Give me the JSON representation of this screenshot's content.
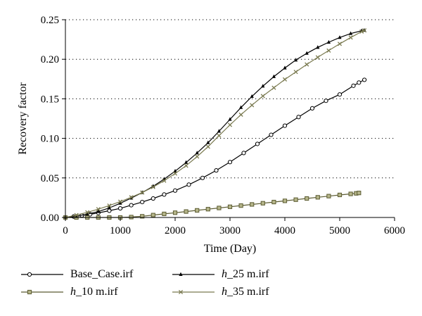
{
  "chart_data": {
    "type": "line",
    "title": "",
    "xlabel": "Time (Day)",
    "ylabel": "Recovery factor",
    "xlim": [
      0,
      6000
    ],
    "ylim": [
      0,
      0.25
    ],
    "xticks": [
      "0",
      "1000",
      "2000",
      "3000",
      "4000",
      "5000",
      "6000"
    ],
    "yticks": [
      "0.00",
      "0.05",
      "0.10",
      "0.15",
      "0.20",
      "0.25"
    ],
    "grid": "horizontal dotted",
    "legend_position": "bottom",
    "series": [
      {
        "name": "Base_Case.irf",
        "name_parts": [
          "",
          "Base_Case.irf"
        ],
        "marker": "circle",
        "color": "#000000",
        "x": [
          0,
          150,
          300,
          450,
          600,
          800,
          1000,
          1200,
          1400,
          1600,
          1800,
          2000,
          2250,
          2500,
          2750,
          3000,
          3250,
          3500,
          3750,
          4000,
          4250,
          4500,
          4750,
          5000,
          5250,
          5350,
          5450
        ],
        "y": [
          0,
          0.0012,
          0.0025,
          0.004,
          0.0058,
          0.0085,
          0.0115,
          0.0155,
          0.0195,
          0.024,
          0.029,
          0.034,
          0.0415,
          0.05,
          0.0595,
          0.07,
          0.0815,
          0.093,
          0.1045,
          0.116,
          0.127,
          0.138,
          0.1475,
          0.1555,
          0.1665,
          0.1705,
          0.174
        ]
      },
      {
        "name": "h_10 m.irf",
        "name_parts": [
          "h",
          "_10 m.irf"
        ],
        "marker": "square",
        "color": "#5a5a30",
        "x": [
          0,
          200,
          400,
          600,
          800,
          1000,
          1200,
          1400,
          1600,
          1800,
          2000,
          2200,
          2400,
          2600,
          2800,
          3000,
          3200,
          3400,
          3600,
          3800,
          4000,
          4200,
          4400,
          4600,
          4800,
          5000,
          5200,
          5300,
          5350
        ],
        "y": [
          0,
          0,
          0,
          0,
          0,
          0,
          0.0005,
          0.0015,
          0.003,
          0.0045,
          0.006,
          0.0075,
          0.009,
          0.0105,
          0.012,
          0.0135,
          0.015,
          0.0165,
          0.018,
          0.0195,
          0.021,
          0.0225,
          0.024,
          0.0255,
          0.027,
          0.0285,
          0.0298,
          0.0305,
          0.031
        ]
      },
      {
        "name": "h_25 m.irf",
        "name_parts": [
          "h",
          "_25 m.irf"
        ],
        "marker": "triangle",
        "color": "#000000",
        "x": [
          0,
          200,
          400,
          600,
          800,
          1000,
          1200,
          1400,
          1600,
          1800,
          2000,
          2200,
          2400,
          2600,
          2800,
          3000,
          3200,
          3400,
          3600,
          3800,
          4000,
          4200,
          4400,
          4600,
          4800,
          5000,
          5200,
          5400,
          5450
        ],
        "y": [
          0,
          0.0015,
          0.0042,
          0.0075,
          0.012,
          0.018,
          0.0245,
          0.0315,
          0.0395,
          0.0485,
          0.0585,
          0.0695,
          0.0815,
          0.0945,
          0.109,
          0.124,
          0.139,
          0.153,
          0.166,
          0.178,
          0.189,
          0.199,
          0.2075,
          0.215,
          0.2215,
          0.2275,
          0.2325,
          0.236,
          0.2365
        ]
      },
      {
        "name": "h_35 m.irf",
        "name_parts": [
          "h",
          "_35 m.irf"
        ],
        "marker": "cross",
        "color": "#7a7a50",
        "x": [
          0,
          200,
          400,
          600,
          800,
          1000,
          1200,
          1400,
          1600,
          1800,
          2000,
          2200,
          2400,
          2600,
          2800,
          3000,
          3200,
          3400,
          3600,
          3800,
          4000,
          4200,
          4400,
          4600,
          4800,
          5000,
          5200,
          5400,
          5450
        ],
        "y": [
          0,
          0.003,
          0.0065,
          0.0105,
          0.015,
          0.02,
          0.0255,
          0.0315,
          0.0385,
          0.0465,
          0.0555,
          0.0655,
          0.077,
          0.0895,
          0.1035,
          0.117,
          0.13,
          0.142,
          0.1535,
          0.164,
          0.1745,
          0.184,
          0.1935,
          0.2025,
          0.211,
          0.2195,
          0.2275,
          0.235,
          0.2365
        ]
      }
    ]
  }
}
